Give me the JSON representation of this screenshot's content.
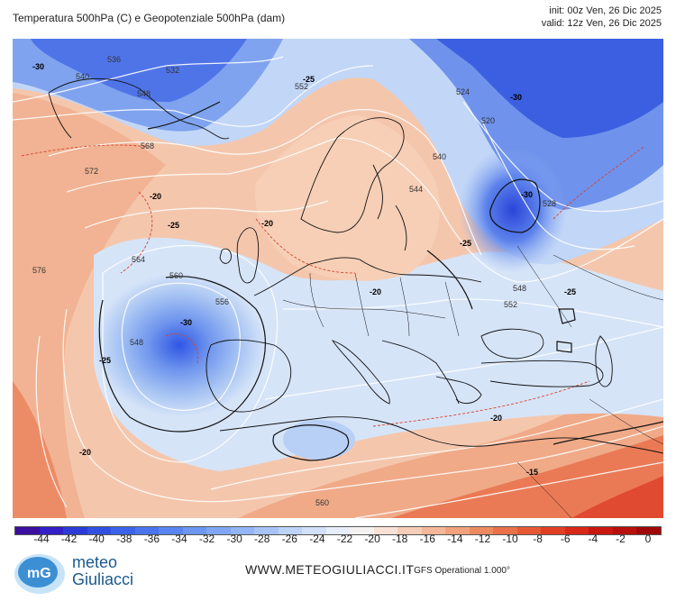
{
  "header": {
    "title": "Temperatura 500hPa (C) e Geopotenziale 500hPa (dam)",
    "init": "init: 00z Ven, 26 Dic 2025",
    "valid": "valid: 12z Ven, 26 Dic 2025"
  },
  "map": {
    "height_labels": [
      "536",
      "532",
      "540",
      "548",
      "552",
      "524",
      "520",
      "528",
      "540",
      "544",
      "548",
      "552",
      "556",
      "560",
      "564",
      "568",
      "572",
      "576",
      "560",
      "548"
    ],
    "temp_labels": [
      "-30",
      "-25",
      "-20",
      "-15"
    ],
    "colors": {
      "deep_blue": "#3b5fe0",
      "mid_blue": "#7fa3ee",
      "light_blue": "#c6d8f6",
      "neutral": "#f2efef",
      "light_orange": "#f4c5a8",
      "orange": "#ef9a72",
      "red": "#e8543a"
    }
  },
  "colorbar": {
    "ticks": [
      "-44",
      "-42",
      "-40",
      "-38",
      "-36",
      "-34",
      "-32",
      "-30",
      "-28",
      "-26",
      "-24",
      "-22",
      "-20",
      "-18",
      "-16",
      "-14",
      "-12",
      "-10",
      "-8",
      "-6",
      "-4",
      "-2",
      "0"
    ],
    "colors": [
      "#3b0fa0",
      "#3320c8",
      "#2b3ad8",
      "#3150e2",
      "#3b63ea",
      "#4a74ee",
      "#5a85f0",
      "#6c96f2",
      "#80a6f4",
      "#93b5f6",
      "#a8c4f7",
      "#bdd3f8",
      "#d2e1fa",
      "#e6eefc",
      "#f5f2f2",
      "#f8e2d6",
      "#f6cdb6",
      "#f4b898",
      "#f1a17c",
      "#ee8a62",
      "#ea7149",
      "#e65834",
      "#e23e24",
      "#d82818",
      "#c81810",
      "#b8100c",
      "#a00808"
    ]
  },
  "footer": {
    "brand_line1": "meteo",
    "brand_line2": "Giuliacci",
    "website": "WWW.METEOGIULIACCI.IT",
    "model": "- GFS Operational 1.000°"
  }
}
